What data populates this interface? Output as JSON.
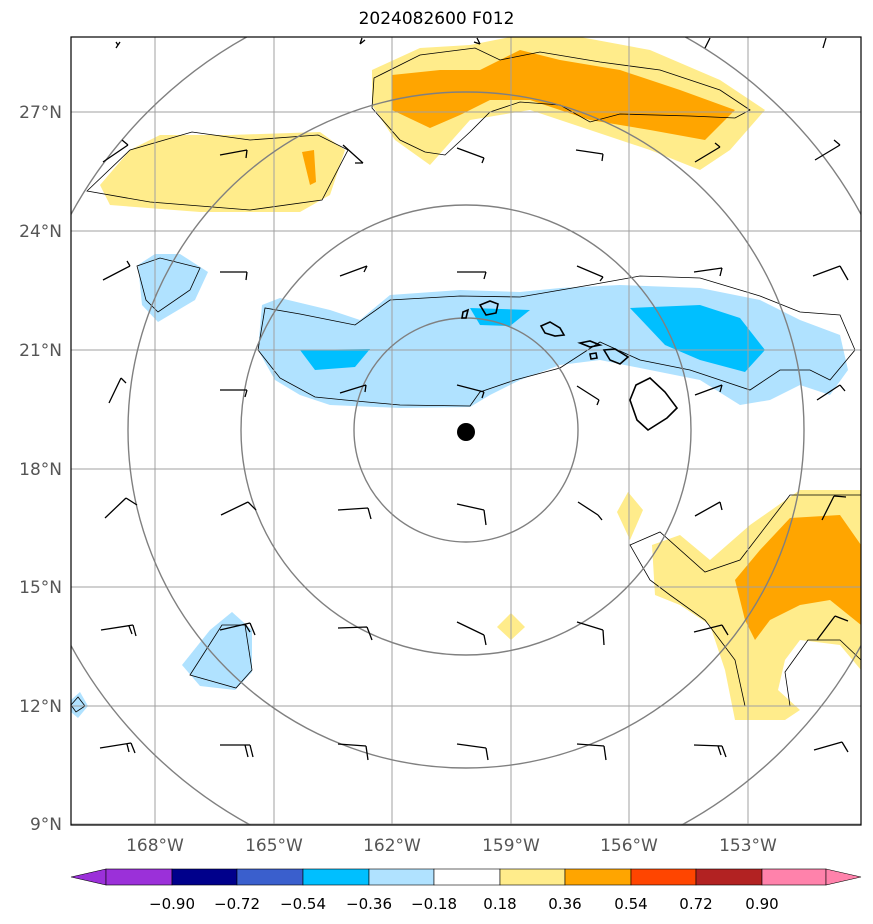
{
  "title": "2024082600 F012",
  "map": {
    "lat_ticks": [
      "27°N",
      "24°N",
      "21°N",
      "18°N",
      "15°N",
      "12°N",
      "9°N"
    ],
    "lon_ticks": [
      "168°W",
      "165°W",
      "162°W",
      "159°W",
      "156°W",
      "153°W"
    ],
    "center_marker": "storm-center-dot"
  },
  "colorbar": {
    "ticks": [
      "−0.90",
      "−0.72",
      "−0.54",
      "−0.36",
      "−0.18",
      "0.18",
      "0.36",
      "0.54",
      "0.72",
      "0.90"
    ],
    "colors": [
      "#9b30d9",
      "#00008b",
      "#3a5fcd",
      "#00bfff",
      "#b0e2ff",
      "#ffffff",
      "#ffec8b",
      "#ffa500",
      "#ff4500",
      "#b22222",
      "#ff82ab"
    ]
  },
  "colors": {
    "light_blue": "#b0e2ff",
    "deep_sky_blue": "#00bfff",
    "light_yellow": "#ffec8b",
    "orange": "#ffa500",
    "grid": "#a0a0a0",
    "range_rings": "#808080"
  }
}
